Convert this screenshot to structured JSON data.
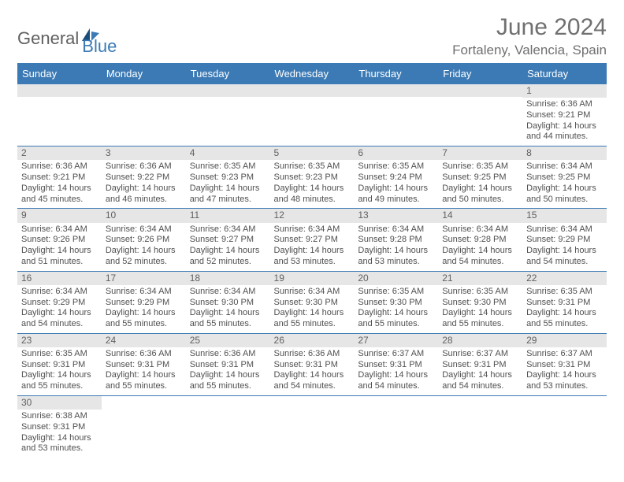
{
  "logo": {
    "text1": "General",
    "text2": "Blue"
  },
  "title": "June 2024",
  "location": "Fortaleny, Valencia, Spain",
  "colors": {
    "header_bg": "#3b7ab5",
    "header_fg": "#ffffff",
    "daynum_bg": "#e6e6e6",
    "text": "#505050",
    "border": "#3b7ab5"
  },
  "columns": [
    "Sunday",
    "Monday",
    "Tuesday",
    "Wednesday",
    "Thursday",
    "Friday",
    "Saturday"
  ],
  "weeks": [
    [
      null,
      null,
      null,
      null,
      null,
      null,
      {
        "n": "1",
        "sr": "6:36 AM",
        "ss": "9:21 PM",
        "dl": "14 hours and 44 minutes."
      }
    ],
    [
      {
        "n": "2",
        "sr": "6:36 AM",
        "ss": "9:21 PM",
        "dl": "14 hours and 45 minutes."
      },
      {
        "n": "3",
        "sr": "6:36 AM",
        "ss": "9:22 PM",
        "dl": "14 hours and 46 minutes."
      },
      {
        "n": "4",
        "sr": "6:35 AM",
        "ss": "9:23 PM",
        "dl": "14 hours and 47 minutes."
      },
      {
        "n": "5",
        "sr": "6:35 AM",
        "ss": "9:23 PM",
        "dl": "14 hours and 48 minutes."
      },
      {
        "n": "6",
        "sr": "6:35 AM",
        "ss": "9:24 PM",
        "dl": "14 hours and 49 minutes."
      },
      {
        "n": "7",
        "sr": "6:35 AM",
        "ss": "9:25 PM",
        "dl": "14 hours and 50 minutes."
      },
      {
        "n": "8",
        "sr": "6:34 AM",
        "ss": "9:25 PM",
        "dl": "14 hours and 50 minutes."
      }
    ],
    [
      {
        "n": "9",
        "sr": "6:34 AM",
        "ss": "9:26 PM",
        "dl": "14 hours and 51 minutes."
      },
      {
        "n": "10",
        "sr": "6:34 AM",
        "ss": "9:26 PM",
        "dl": "14 hours and 52 minutes."
      },
      {
        "n": "11",
        "sr": "6:34 AM",
        "ss": "9:27 PM",
        "dl": "14 hours and 52 minutes."
      },
      {
        "n": "12",
        "sr": "6:34 AM",
        "ss": "9:27 PM",
        "dl": "14 hours and 53 minutes."
      },
      {
        "n": "13",
        "sr": "6:34 AM",
        "ss": "9:28 PM",
        "dl": "14 hours and 53 minutes."
      },
      {
        "n": "14",
        "sr": "6:34 AM",
        "ss": "9:28 PM",
        "dl": "14 hours and 54 minutes."
      },
      {
        "n": "15",
        "sr": "6:34 AM",
        "ss": "9:29 PM",
        "dl": "14 hours and 54 minutes."
      }
    ],
    [
      {
        "n": "16",
        "sr": "6:34 AM",
        "ss": "9:29 PM",
        "dl": "14 hours and 54 minutes."
      },
      {
        "n": "17",
        "sr": "6:34 AM",
        "ss": "9:29 PM",
        "dl": "14 hours and 55 minutes."
      },
      {
        "n": "18",
        "sr": "6:34 AM",
        "ss": "9:30 PM",
        "dl": "14 hours and 55 minutes."
      },
      {
        "n": "19",
        "sr": "6:34 AM",
        "ss": "9:30 PM",
        "dl": "14 hours and 55 minutes."
      },
      {
        "n": "20",
        "sr": "6:35 AM",
        "ss": "9:30 PM",
        "dl": "14 hours and 55 minutes."
      },
      {
        "n": "21",
        "sr": "6:35 AM",
        "ss": "9:30 PM",
        "dl": "14 hours and 55 minutes."
      },
      {
        "n": "22",
        "sr": "6:35 AM",
        "ss": "9:31 PM",
        "dl": "14 hours and 55 minutes."
      }
    ],
    [
      {
        "n": "23",
        "sr": "6:35 AM",
        "ss": "9:31 PM",
        "dl": "14 hours and 55 minutes."
      },
      {
        "n": "24",
        "sr": "6:36 AM",
        "ss": "9:31 PM",
        "dl": "14 hours and 55 minutes."
      },
      {
        "n": "25",
        "sr": "6:36 AM",
        "ss": "9:31 PM",
        "dl": "14 hours and 55 minutes."
      },
      {
        "n": "26",
        "sr": "6:36 AM",
        "ss": "9:31 PM",
        "dl": "14 hours and 54 minutes."
      },
      {
        "n": "27",
        "sr": "6:37 AM",
        "ss": "9:31 PM",
        "dl": "14 hours and 54 minutes."
      },
      {
        "n": "28",
        "sr": "6:37 AM",
        "ss": "9:31 PM",
        "dl": "14 hours and 54 minutes."
      },
      {
        "n": "29",
        "sr": "6:37 AM",
        "ss": "9:31 PM",
        "dl": "14 hours and 53 minutes."
      }
    ],
    [
      {
        "n": "30",
        "sr": "6:38 AM",
        "ss": "9:31 PM",
        "dl": "14 hours and 53 minutes."
      },
      null,
      null,
      null,
      null,
      null,
      null
    ]
  ],
  "labels": {
    "sunrise": "Sunrise: ",
    "sunset": "Sunset: ",
    "daylight": "Daylight: "
  }
}
